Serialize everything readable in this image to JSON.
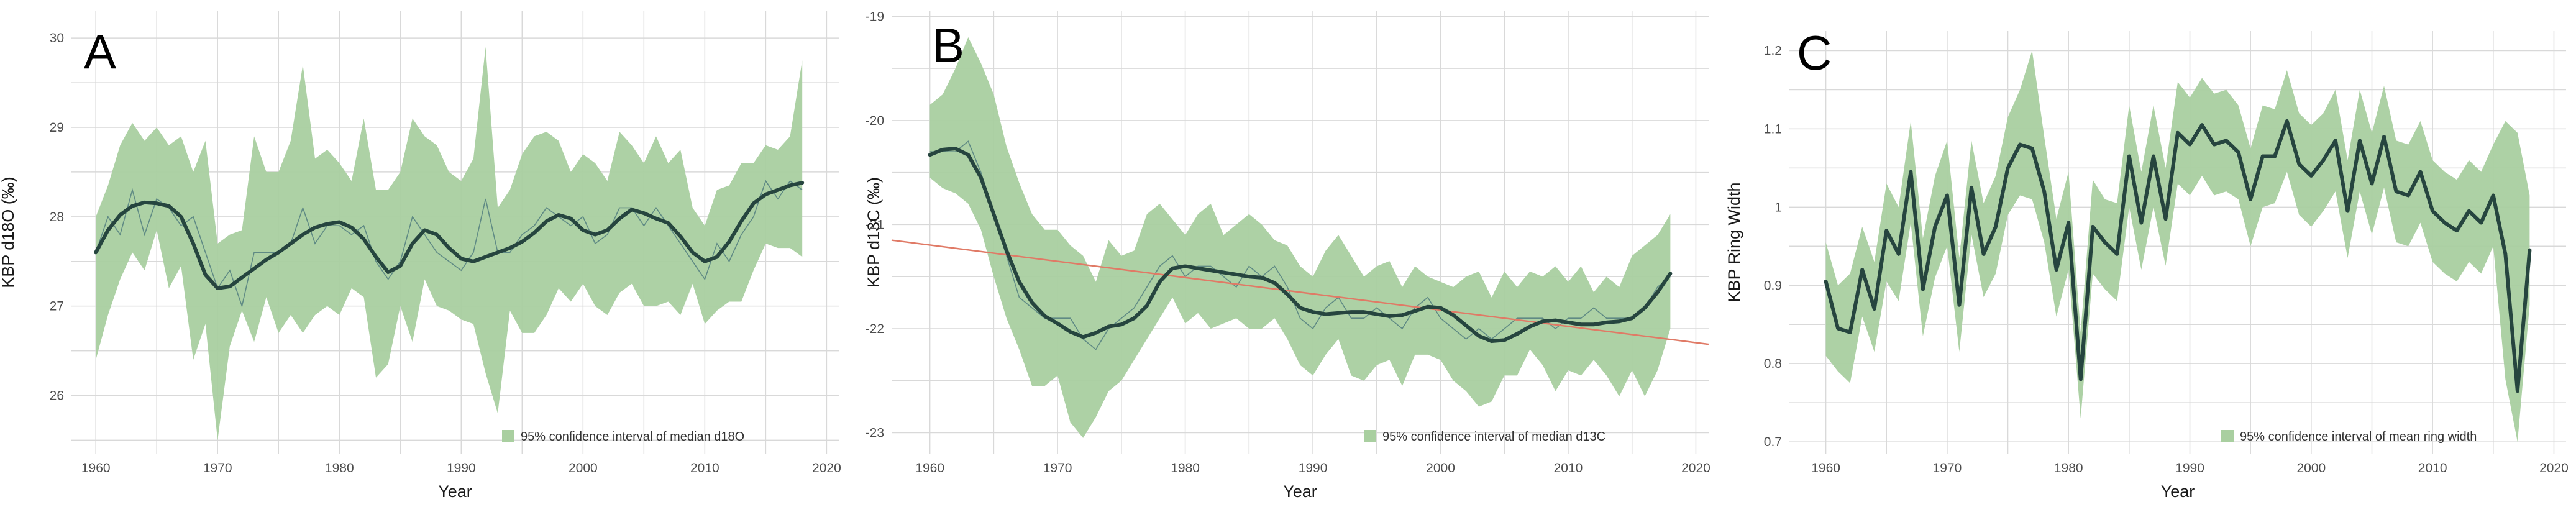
{
  "chart_data": [
    {
      "type": "line",
      "panel_label": "A",
      "xlabel": "Year",
      "ylabel": "KBP d18O (‰)",
      "xlim": [
        1958,
        2021
      ],
      "ylim": [
        25.35,
        30.3
      ],
      "xticks": [
        1960,
        1970,
        1980,
        1990,
        2000,
        2010,
        2020
      ],
      "yticks": [
        26,
        27,
        28,
        29,
        30
      ],
      "grid": true,
      "legend": {
        "position": "bottom-right",
        "label": "95% confidence interval of median d18O"
      },
      "colors": {
        "ci_band": "#a9cfa0",
        "annual": "#5f8a84",
        "smooth": "#26453f",
        "grid": "#d9d9d9"
      },
      "x": [
        1960,
        1961,
        1962,
        1963,
        1964,
        1965,
        1966,
        1967,
        1968,
        1969,
        1970,
        1971,
        1972,
        1973,
        1974,
        1975,
        1976,
        1977,
        1978,
        1979,
        1980,
        1981,
        1982,
        1983,
        1984,
        1985,
        1986,
        1987,
        1988,
        1989,
        1990,
        1991,
        1992,
        1993,
        1994,
        1995,
        1996,
        1997,
        1998,
        1999,
        2000,
        2001,
        2002,
        2003,
        2004,
        2005,
        2006,
        2007,
        2008,
        2009,
        2010,
        2011,
        2012,
        2013,
        2014,
        2015,
        2016,
        2017,
        2018
      ],
      "series": [
        {
          "role": "median",
          "values": [
            27.6,
            28.0,
            27.8,
            28.3,
            27.8,
            28.2,
            28.1,
            27.9,
            28.0,
            27.6,
            27.2,
            27.4,
            27.0,
            27.6,
            27.6,
            27.6,
            27.7,
            28.1,
            27.7,
            27.9,
            27.9,
            27.8,
            27.9,
            27.5,
            27.3,
            27.5,
            28.0,
            27.8,
            27.6,
            27.5,
            27.4,
            27.6,
            28.2,
            27.6,
            27.6,
            27.8,
            27.9,
            28.1,
            28.0,
            27.9,
            28.0,
            27.7,
            27.8,
            28.1,
            28.1,
            27.9,
            28.1,
            27.9,
            27.7,
            27.5,
            27.3,
            27.7,
            27.5,
            27.8,
            28.0,
            28.4,
            28.2,
            28.4,
            28.3
          ]
        },
        {
          "role": "smoothed",
          "values": [
            27.6,
            27.85,
            28.02,
            28.12,
            28.16,
            28.15,
            28.12,
            28.0,
            27.7,
            27.35,
            27.2,
            27.22,
            27.32,
            27.42,
            27.52,
            27.6,
            27.7,
            27.8,
            27.88,
            27.92,
            27.94,
            27.88,
            27.75,
            27.55,
            27.38,
            27.45,
            27.7,
            27.85,
            27.8,
            27.65,
            27.53,
            27.5,
            27.55,
            27.6,
            27.65,
            27.72,
            27.82,
            27.95,
            28.02,
            27.98,
            27.85,
            27.8,
            27.85,
            27.98,
            28.08,
            28.04,
            27.98,
            27.93,
            27.78,
            27.6,
            27.5,
            27.55,
            27.72,
            27.95,
            28.15,
            28.25,
            28.3,
            28.35,
            28.38
          ]
        },
        {
          "role": "ci_upper",
          "values": [
            28.0,
            28.35,
            28.8,
            29.05,
            28.85,
            29.0,
            28.8,
            28.9,
            28.5,
            28.85,
            27.7,
            27.8,
            27.85,
            28.9,
            28.5,
            28.5,
            28.85,
            29.7,
            28.65,
            28.75,
            28.6,
            28.4,
            29.1,
            28.3,
            28.3,
            28.5,
            29.1,
            28.9,
            28.8,
            28.5,
            28.4,
            28.65,
            29.9,
            28.1,
            28.3,
            28.7,
            28.9,
            28.95,
            28.85,
            28.5,
            28.7,
            28.6,
            28.4,
            28.95,
            28.8,
            28.6,
            28.9,
            28.6,
            28.75,
            28.1,
            27.9,
            28.3,
            28.35,
            28.6,
            28.6,
            28.8,
            28.75,
            28.9,
            29.75
          ]
        },
        {
          "role": "ci_lower",
          "values": [
            26.4,
            26.9,
            27.3,
            27.6,
            27.4,
            27.85,
            27.2,
            27.45,
            26.4,
            26.8,
            25.5,
            26.55,
            26.95,
            26.6,
            27.1,
            26.7,
            26.9,
            26.7,
            26.9,
            27.0,
            26.9,
            27.2,
            27.1,
            26.2,
            26.35,
            27.0,
            26.6,
            27.3,
            27.0,
            26.95,
            26.85,
            26.8,
            26.25,
            25.8,
            26.95,
            26.7,
            26.7,
            26.9,
            27.2,
            27.05,
            27.25,
            27.0,
            26.9,
            27.15,
            27.25,
            27.0,
            27.0,
            27.05,
            26.9,
            27.25,
            26.8,
            26.95,
            27.05,
            27.05,
            27.4,
            27.7,
            27.65,
            27.65,
            27.55
          ]
        }
      ]
    },
    {
      "type": "line",
      "panel_label": "B",
      "xlabel": "Year",
      "ylabel": "KBP d13C (‰)",
      "xlim": [
        1957,
        2021
      ],
      "ylim": [
        -23.2,
        -18.95
      ],
      "xticks": [
        1960,
        1970,
        1980,
        1990,
        2000,
        2010,
        2020
      ],
      "yticks": [
        -23,
        -22,
        -21,
        -20,
        -19
      ],
      "grid": true,
      "legend": {
        "position": "bottom-right",
        "label": "95% confidence interval of median d13C"
      },
      "colors": {
        "ci_band": "#a9cfa0",
        "annual": "#5f8a84",
        "smooth": "#26453f",
        "trend": "#e07a66",
        "grid": "#d9d9d9"
      },
      "trend_line": {
        "x": [
          1957,
          2021
        ],
        "y": [
          -21.15,
          -22.15
        ]
      },
      "x": [
        1960,
        1961,
        1962,
        1963,
        1964,
        1965,
        1966,
        1967,
        1968,
        1969,
        1970,
        1971,
        1972,
        1973,
        1974,
        1975,
        1976,
        1977,
        1978,
        1979,
        1980,
        1981,
        1982,
        1983,
        1984,
        1985,
        1986,
        1987,
        1988,
        1989,
        1990,
        1991,
        1992,
        1993,
        1994,
        1995,
        1996,
        1997,
        1998,
        1999,
        2000,
        2001,
        2002,
        2003,
        2004,
        2005,
        2006,
        2007,
        2008,
        2009,
        2010,
        2011,
        2012,
        2013,
        2014,
        2015,
        2016,
        2017,
        2018
      ],
      "series": [
        {
          "role": "median",
          "values": [
            -20.3,
            -20.3,
            -20.3,
            -20.2,
            -20.5,
            -20.9,
            -21.3,
            -21.7,
            -21.8,
            -21.9,
            -21.9,
            -21.9,
            -22.1,
            -22.2,
            -22.0,
            -21.9,
            -21.8,
            -21.6,
            -21.4,
            -21.3,
            -21.5,
            -21.4,
            -21.4,
            -21.5,
            -21.6,
            -21.4,
            -21.5,
            -21.4,
            -21.6,
            -21.9,
            -22.0,
            -21.8,
            -21.7,
            -21.9,
            -21.9,
            -21.8,
            -21.9,
            -22.0,
            -21.8,
            -21.7,
            -21.9,
            -22.0,
            -22.1,
            -22.0,
            -22.1,
            -22.0,
            -21.9,
            -21.9,
            -21.9,
            -22.0,
            -21.9,
            -21.9,
            -21.8,
            -21.9,
            -21.9,
            -21.9,
            -21.8,
            -21.6,
            -21.5
          ]
        },
        {
          "role": "smoothed",
          "values": [
            -20.33,
            -20.28,
            -20.27,
            -20.33,
            -20.55,
            -20.9,
            -21.25,
            -21.55,
            -21.75,
            -21.88,
            -21.95,
            -22.03,
            -22.08,
            -22.04,
            -21.98,
            -21.96,
            -21.9,
            -21.78,
            -21.55,
            -21.42,
            -21.4,
            -21.42,
            -21.44,
            -21.46,
            -21.48,
            -21.5,
            -21.51,
            -21.56,
            -21.67,
            -21.8,
            -21.84,
            -21.86,
            -21.85,
            -21.84,
            -21.84,
            -21.86,
            -21.88,
            -21.87,
            -21.83,
            -21.79,
            -21.8,
            -21.87,
            -21.97,
            -22.07,
            -22.12,
            -22.11,
            -22.05,
            -21.98,
            -21.93,
            -21.92,
            -21.94,
            -21.96,
            -21.96,
            -21.94,
            -21.93,
            -21.9,
            -21.8,
            -21.65,
            -21.47
          ]
        },
        {
          "role": "ci_upper",
          "values": [
            -19.85,
            -19.75,
            -19.5,
            -19.2,
            -19.45,
            -19.75,
            -20.25,
            -20.6,
            -20.9,
            -21.05,
            -21.05,
            -21.2,
            -21.3,
            -21.55,
            -21.15,
            -21.3,
            -21.25,
            -20.9,
            -20.8,
            -20.95,
            -21.1,
            -20.9,
            -20.8,
            -21.1,
            -21.0,
            -20.9,
            -21.0,
            -21.15,
            -21.2,
            -21.4,
            -21.5,
            -21.25,
            -21.1,
            -21.3,
            -21.5,
            -21.4,
            -21.35,
            -21.6,
            -21.4,
            -21.5,
            -21.55,
            -21.6,
            -21.5,
            -21.45,
            -21.7,
            -21.45,
            -21.6,
            -21.45,
            -21.5,
            -21.4,
            -21.55,
            -21.4,
            -21.65,
            -21.5,
            -21.6,
            -21.3,
            -21.2,
            -21.1,
            -20.9
          ]
        },
        {
          "role": "ci_lower",
          "values": [
            -20.55,
            -20.65,
            -20.7,
            -20.8,
            -21.05,
            -21.5,
            -21.9,
            -22.2,
            -22.55,
            -22.55,
            -22.45,
            -22.9,
            -23.05,
            -22.85,
            -22.6,
            -22.5,
            -22.3,
            -22.1,
            -21.9,
            -21.7,
            -21.95,
            -21.85,
            -22.0,
            -21.95,
            -21.9,
            -22.0,
            -22.0,
            -21.9,
            -22.1,
            -22.35,
            -22.45,
            -22.25,
            -22.1,
            -22.45,
            -22.5,
            -22.35,
            -22.3,
            -22.55,
            -22.25,
            -22.25,
            -22.3,
            -22.5,
            -22.6,
            -22.75,
            -22.7,
            -22.45,
            -22.45,
            -22.2,
            -22.35,
            -22.6,
            -22.4,
            -22.45,
            -22.3,
            -22.45,
            -22.65,
            -22.4,
            -22.65,
            -22.4,
            -22.0
          ]
        }
      ]
    },
    {
      "type": "line",
      "panel_label": "C",
      "xlabel": "Year",
      "ylabel": "KBP Ring Width",
      "xlim": [
        1957,
        2021
      ],
      "ylim": [
        0.685,
        1.225
      ],
      "xticks": [
        1960,
        1970,
        1980,
        1990,
        2000,
        2010,
        2020
      ],
      "yticks": [
        0.7,
        0.8,
        0.9,
        1.0,
        1.1,
        1.2
      ],
      "grid": true,
      "legend": {
        "position": "bottom-right",
        "label": "95% confidence interval of mean ring width"
      },
      "colors": {
        "ci_band": "#a9cfa0",
        "smooth": "#26453f",
        "grid": "#d9d9d9"
      },
      "x": [
        1960,
        1961,
        1962,
        1963,
        1964,
        1965,
        1966,
        1967,
        1968,
        1969,
        1970,
        1971,
        1972,
        1973,
        1974,
        1975,
        1976,
        1977,
        1978,
        1979,
        1980,
        1981,
        1982,
        1983,
        1984,
        1985,
        1986,
        1987,
        1988,
        1989,
        1990,
        1991,
        1992,
        1993,
        1994,
        1995,
        1996,
        1997,
        1998,
        1999,
        2000,
        2001,
        2002,
        2003,
        2004,
        2005,
        2006,
        2007,
        2008,
        2009,
        2010,
        2011,
        2012,
        2013,
        2014,
        2015,
        2016,
        2017,
        2018
      ],
      "series": [
        {
          "role": "mean",
          "values": [
            0.905,
            0.845,
            0.84,
            0.92,
            0.87,
            0.97,
            0.94,
            1.045,
            0.895,
            0.975,
            1.015,
            0.875,
            1.025,
            0.94,
            0.975,
            1.05,
            1.08,
            1.075,
            1.02,
            0.92,
            0.98,
            0.78,
            0.975,
            0.955,
            0.94,
            1.065,
            0.98,
            1.065,
            0.985,
            1.095,
            1.08,
            1.105,
            1.08,
            1.085,
            1.07,
            1.01,
            1.065,
            1.065,
            1.11,
            1.055,
            1.04,
            1.06,
            1.085,
            0.995,
            1.085,
            1.03,
            1.09,
            1.02,
            1.015,
            1.045,
            0.995,
            0.98,
            0.97,
            0.995,
            0.98,
            1.015,
            0.94,
            0.765,
            0.945
          ]
        },
        {
          "role": "ci_upper",
          "values": [
            0.955,
            0.9,
            0.915,
            0.975,
            0.93,
            1.03,
            1.0,
            1.11,
            0.96,
            1.04,
            1.085,
            0.935,
            1.085,
            1.005,
            1.04,
            1.115,
            1.15,
            1.2,
            1.09,
            0.985,
            1.045,
            0.84,
            1.035,
            1.01,
            1.005,
            1.13,
            1.045,
            1.13,
            1.05,
            1.16,
            1.14,
            1.165,
            1.145,
            1.15,
            1.13,
            1.075,
            1.13,
            1.125,
            1.175,
            1.12,
            1.105,
            1.12,
            1.15,
            1.06,
            1.15,
            1.095,
            1.155,
            1.085,
            1.08,
            1.11,
            1.06,
            1.045,
            1.035,
            1.06,
            1.045,
            1.08,
            1.11,
            1.095,
            1.015
          ]
        },
        {
          "role": "ci_lower",
          "values": [
            0.81,
            0.79,
            0.775,
            0.86,
            0.815,
            0.905,
            0.88,
            0.98,
            0.835,
            0.91,
            0.95,
            0.815,
            0.965,
            0.885,
            0.915,
            0.99,
            1.015,
            1.01,
            0.955,
            0.86,
            0.92,
            0.73,
            0.915,
            0.895,
            0.88,
            1.0,
            0.92,
            1.0,
            0.925,
            1.03,
            1.015,
            1.04,
            1.015,
            1.02,
            1.01,
            0.95,
            1.0,
            1.005,
            1.045,
            0.99,
            0.975,
            0.995,
            1.02,
            0.935,
            1.02,
            0.965,
            1.025,
            0.955,
            0.95,
            0.98,
            0.93,
            0.915,
            0.905,
            0.93,
            0.915,
            0.95,
            0.78,
            0.7,
            0.875
          ]
        }
      ]
    }
  ]
}
